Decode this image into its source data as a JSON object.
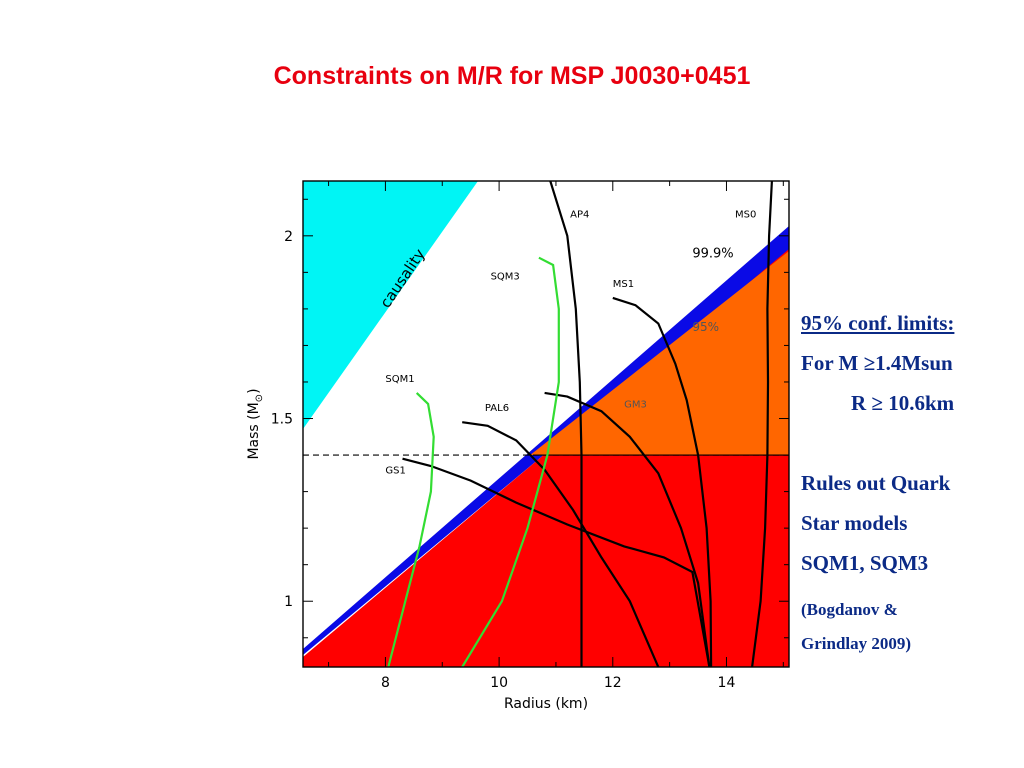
{
  "slide": {
    "title": "Constraints on M/R for MSP J0030+0451"
  },
  "sidebar": {
    "heading": "95% conf. limits:",
    "line1": "For M ≥1.4Msun",
    "line2": "R  ≥ 10.6km",
    "line3": "Rules out Quark",
    "line4": "Star models",
    "line5": "SQM1, SQM3",
    "citation1": "(Bogdanov &",
    "citation2": "Grindlay 2009)"
  },
  "chart_data": {
    "type": "line",
    "xlabel": "Radius (km)",
    "ylabel": "Mass (M",
    "ylabel_symbol": "⊙",
    "xlim": [
      6.55,
      15.1
    ],
    "ylim": [
      0.82,
      2.15
    ],
    "xticks": [
      8,
      10,
      12,
      14
    ],
    "yticks": [
      1,
      1.5,
      2
    ],
    "ytick_labels": [
      "1",
      "1.5",
      "2"
    ],
    "colors": {
      "causality": "#00f5f5",
      "excluded_999": "#ff0000",
      "band": "#0a0ae6",
      "excluded_95": "#ff6600",
      "sqm": "#33dd33",
      "eos": "#000000"
    },
    "regions": {
      "causality_label": "causality",
      "label_999": "99.9%",
      "label_95": "95%",
      "mass_limit": 1.4,
      "radius_limit": 10.6
    },
    "series": [
      {
        "name": "AP4",
        "color": "#000000",
        "points": [
          [
            10.9,
            2.15
          ],
          [
            11.2,
            2.0
          ],
          [
            11.35,
            1.8
          ],
          [
            11.42,
            1.6
          ],
          [
            11.45,
            1.4
          ],
          [
            11.45,
            1.2
          ],
          [
            11.45,
            1.0
          ],
          [
            11.45,
            0.82
          ]
        ]
      },
      {
        "name": "MS0",
        "color": "#000000",
        "points": [
          [
            14.8,
            2.15
          ],
          [
            14.75,
            2.0
          ],
          [
            14.72,
            1.8
          ],
          [
            14.73,
            1.6
          ],
          [
            14.72,
            1.4
          ],
          [
            14.68,
            1.2
          ],
          [
            14.6,
            1.0
          ],
          [
            14.45,
            0.82
          ]
        ]
      },
      {
        "name": "MS1",
        "color": "#000000",
        "points": [
          [
            12.0,
            1.83
          ],
          [
            12.4,
            1.81
          ],
          [
            12.8,
            1.76
          ],
          [
            13.1,
            1.65
          ],
          [
            13.3,
            1.55
          ],
          [
            13.5,
            1.4
          ],
          [
            13.65,
            1.2
          ],
          [
            13.72,
            1.0
          ],
          [
            13.73,
            0.82
          ]
        ]
      },
      {
        "name": "GM3",
        "color": "#000000",
        "points": [
          [
            10.8,
            1.57
          ],
          [
            11.2,
            1.56
          ],
          [
            11.8,
            1.52
          ],
          [
            12.3,
            1.45
          ],
          [
            12.8,
            1.35
          ],
          [
            13.2,
            1.2
          ],
          [
            13.5,
            1.05
          ],
          [
            13.7,
            0.82
          ]
        ]
      },
      {
        "name": "PAL6",
        "color": "#000000",
        "points": [
          [
            9.35,
            1.49
          ],
          [
            9.8,
            1.48
          ],
          [
            10.3,
            1.44
          ],
          [
            10.8,
            1.36
          ],
          [
            11.3,
            1.25
          ],
          [
            11.8,
            1.12
          ],
          [
            12.3,
            1.0
          ],
          [
            12.8,
            0.82
          ]
        ]
      },
      {
        "name": "GS1",
        "color": "#000000",
        "points": [
          [
            8.3,
            1.39
          ],
          [
            8.8,
            1.37
          ],
          [
            9.5,
            1.33
          ],
          [
            10.3,
            1.27
          ],
          [
            11.2,
            1.21
          ],
          [
            12.2,
            1.15
          ],
          [
            12.9,
            1.12
          ],
          [
            13.4,
            1.08
          ],
          [
            13.7,
            0.82
          ]
        ]
      },
      {
        "name": "SQM1",
        "color": "#33dd33",
        "points": [
          [
            8.55,
            1.57
          ],
          [
            8.75,
            1.54
          ],
          [
            8.85,
            1.45
          ],
          [
            8.8,
            1.3
          ],
          [
            8.6,
            1.15
          ],
          [
            8.35,
            1.0
          ],
          [
            8.05,
            0.82
          ]
        ]
      },
      {
        "name": "SQM3",
        "color": "#33dd33",
        "points": [
          [
            10.7,
            1.94
          ],
          [
            10.95,
            1.92
          ],
          [
            11.05,
            1.8
          ],
          [
            11.05,
            1.6
          ],
          [
            10.85,
            1.4
          ],
          [
            10.5,
            1.2
          ],
          [
            10.05,
            1.0
          ],
          [
            9.35,
            0.82
          ]
        ]
      }
    ],
    "series_labels": [
      "AP4",
      "MS0",
      "MS1",
      "SQM3",
      "SQM1",
      "PAL6",
      "GS1",
      "GM3"
    ]
  }
}
